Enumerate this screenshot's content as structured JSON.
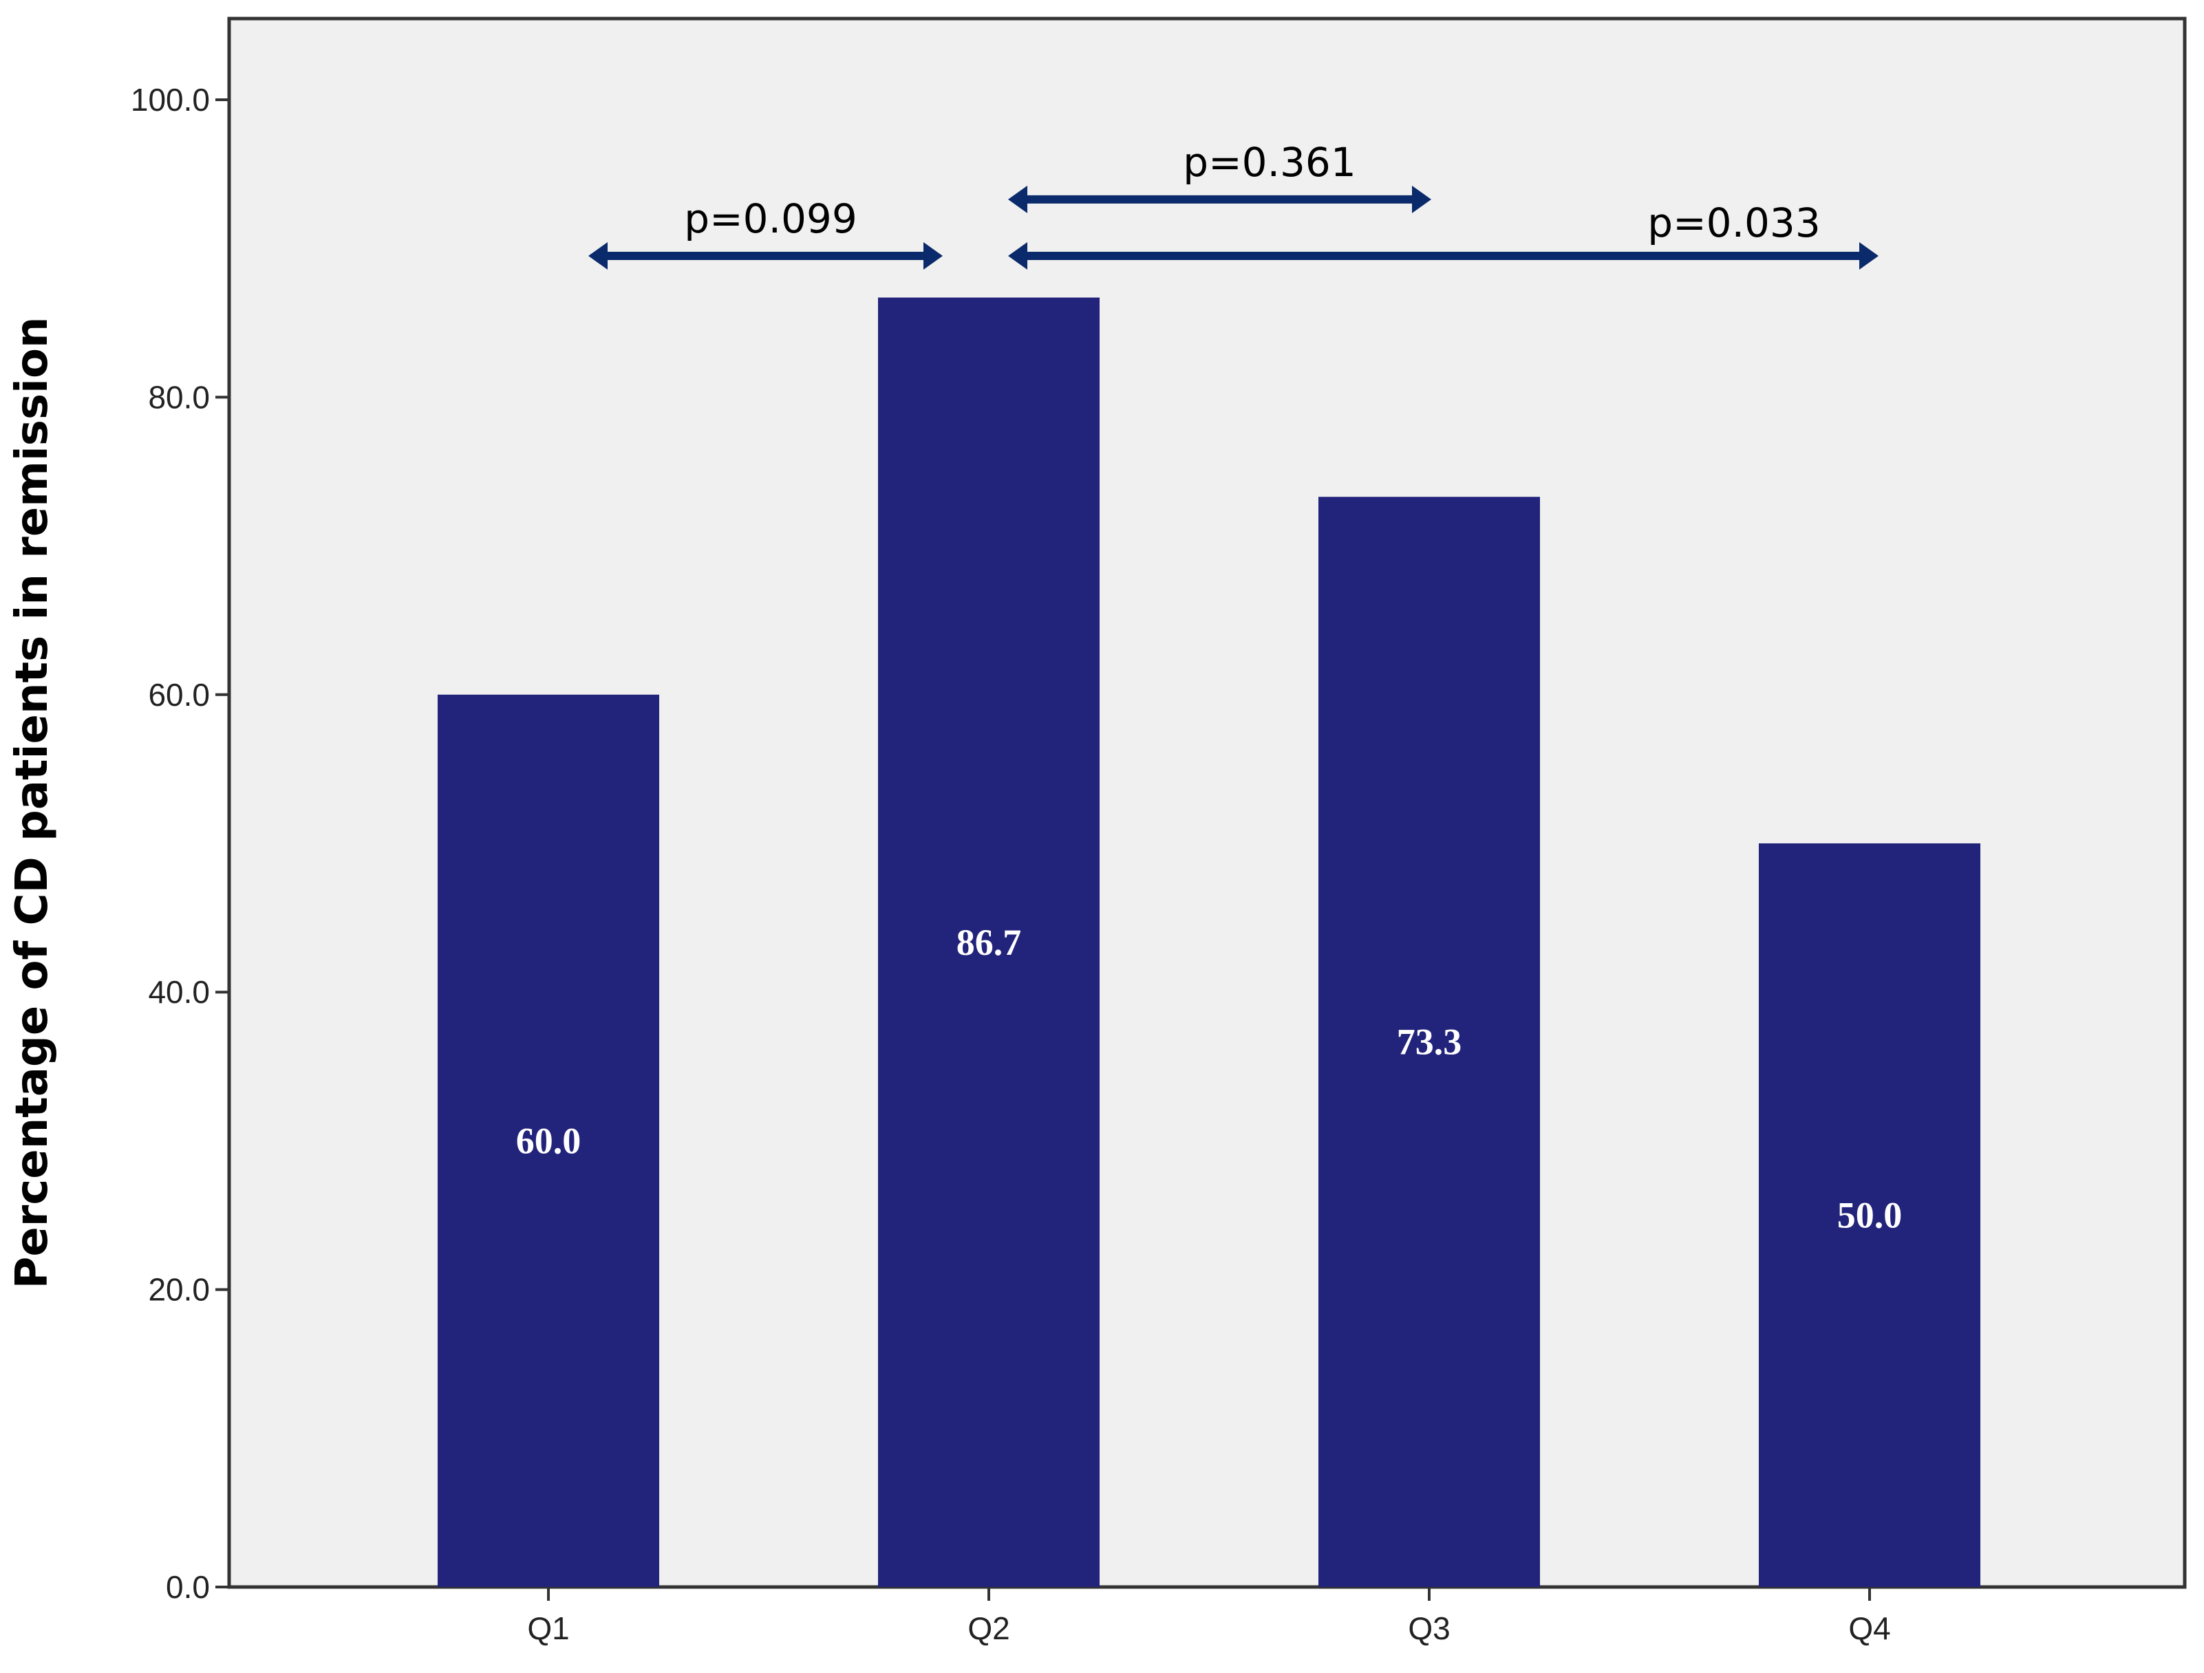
{
  "chart_data": {
    "type": "bar",
    "categories": [
      "Q1",
      "Q2",
      "Q3",
      "Q4"
    ],
    "values": [
      60.0,
      86.7,
      73.3,
      50.0
    ],
    "data_labels": [
      "60.0",
      "86.7",
      "73.3",
      "50.0"
    ],
    "ylabel": "Percentage of CD patients in remission",
    "xlabel": "",
    "ylim": [
      0,
      105
    ],
    "yticks": [
      0,
      20,
      40,
      60,
      80,
      100
    ],
    "ytick_labels": [
      "0.0",
      "20.0",
      "40.0",
      "60.0",
      "80.0",
      "100.0"
    ],
    "grid": false,
    "colors": {
      "bar": "#22237A",
      "plot_background": "#F0F0F0",
      "annotation_arrow": "#0B2A6B",
      "data_label": "#FFFFFF"
    },
    "annotations": [
      {
        "label": "p=0.099",
        "from": "Q1",
        "to": "Q2",
        "y": 89.5
      },
      {
        "label": "p=0.361",
        "from": "Q2",
        "to": "Q3",
        "y": 93.3
      },
      {
        "label": "p=0.033",
        "from": "Q2",
        "to": "Q4",
        "y": 89.5
      }
    ]
  }
}
